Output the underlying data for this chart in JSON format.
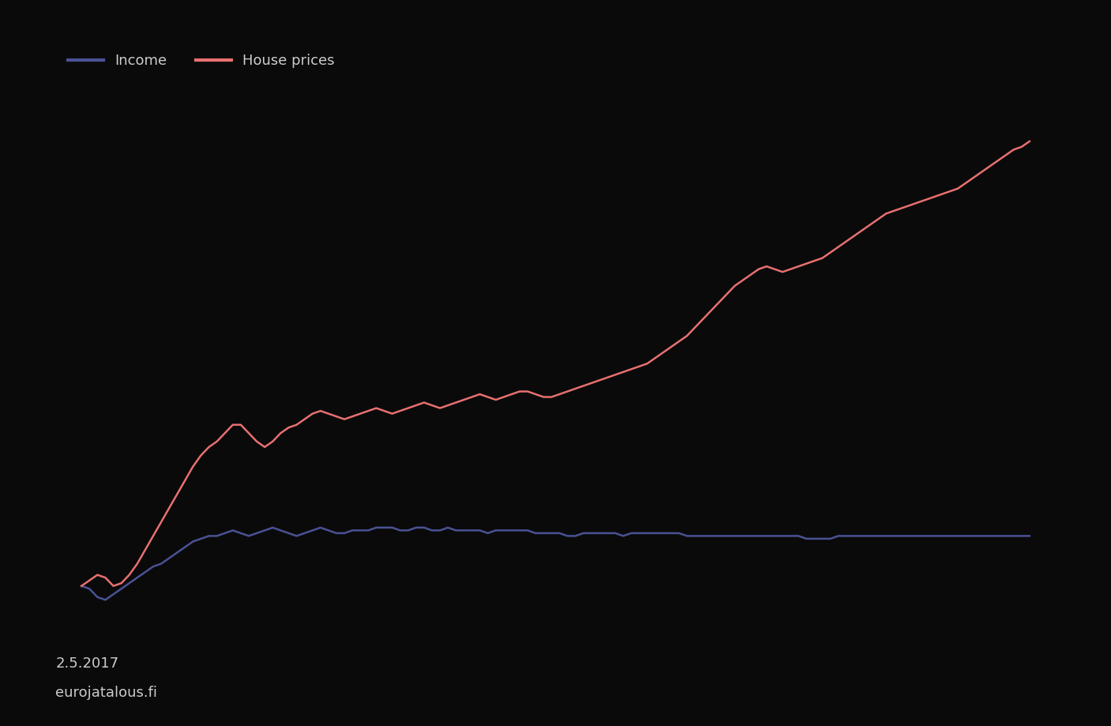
{
  "legend_label_1": "Income",
  "legend_label_2": "House prices",
  "line1_color": "#4a5295",
  "line2_color": "#e87070",
  "background_color": "#0a0a0a",
  "text_color": "#cccccc",
  "date_text": "2.5.2017",
  "source_text": "eurojatalous.fi",
  "line1_y": [
    100,
    99,
    96,
    95,
    97,
    99,
    101,
    103,
    105,
    107,
    108,
    110,
    112,
    114,
    116,
    117,
    118,
    118,
    119,
    120,
    119,
    118,
    119,
    120,
    121,
    120,
    119,
    118,
    119,
    120,
    121,
    120,
    119,
    119,
    120,
    120,
    120,
    121,
    121,
    121,
    120,
    120,
    121,
    121,
    120,
    120,
    121,
    120,
    120,
    120,
    120,
    119,
    120,
    120,
    120,
    120,
    120,
    119,
    119,
    119,
    119,
    118,
    118,
    119,
    119,
    119,
    119,
    119,
    118,
    119,
    119,
    119,
    119,
    119,
    119,
    119,
    118,
    118,
    118,
    118,
    118,
    118,
    118,
    118,
    118,
    118,
    118,
    118,
    118,
    118,
    118,
    117,
    117,
    117,
    117,
    118,
    118,
    118,
    118,
    118,
    118,
    118,
    118,
    118,
    118,
    118,
    118,
    118,
    118,
    118,
    118,
    118,
    118,
    118,
    118,
    118,
    118,
    118,
    118,
    118
  ],
  "line2_y": [
    100,
    102,
    104,
    103,
    100,
    101,
    104,
    108,
    113,
    118,
    123,
    128,
    133,
    138,
    143,
    147,
    150,
    152,
    155,
    158,
    158,
    155,
    152,
    150,
    152,
    155,
    157,
    158,
    160,
    162,
    163,
    162,
    161,
    160,
    161,
    162,
    163,
    164,
    163,
    162,
    163,
    164,
    165,
    166,
    165,
    164,
    165,
    166,
    167,
    168,
    169,
    168,
    167,
    168,
    169,
    170,
    170,
    169,
    168,
    168,
    169,
    170,
    171,
    172,
    173,
    174,
    175,
    176,
    177,
    178,
    179,
    180,
    182,
    184,
    186,
    188,
    190,
    193,
    196,
    199,
    202,
    205,
    208,
    210,
    212,
    214,
    215,
    214,
    213,
    214,
    215,
    216,
    217,
    218,
    220,
    222,
    224,
    226,
    228,
    230,
    232,
    234,
    235,
    236,
    237,
    238,
    239,
    240,
    241,
    242,
    243,
    245,
    247,
    249,
    251,
    253,
    255,
    257,
    258,
    260
  ],
  "n_points": 120,
  "ylim": [
    80,
    280
  ],
  "line_width": 1.8
}
